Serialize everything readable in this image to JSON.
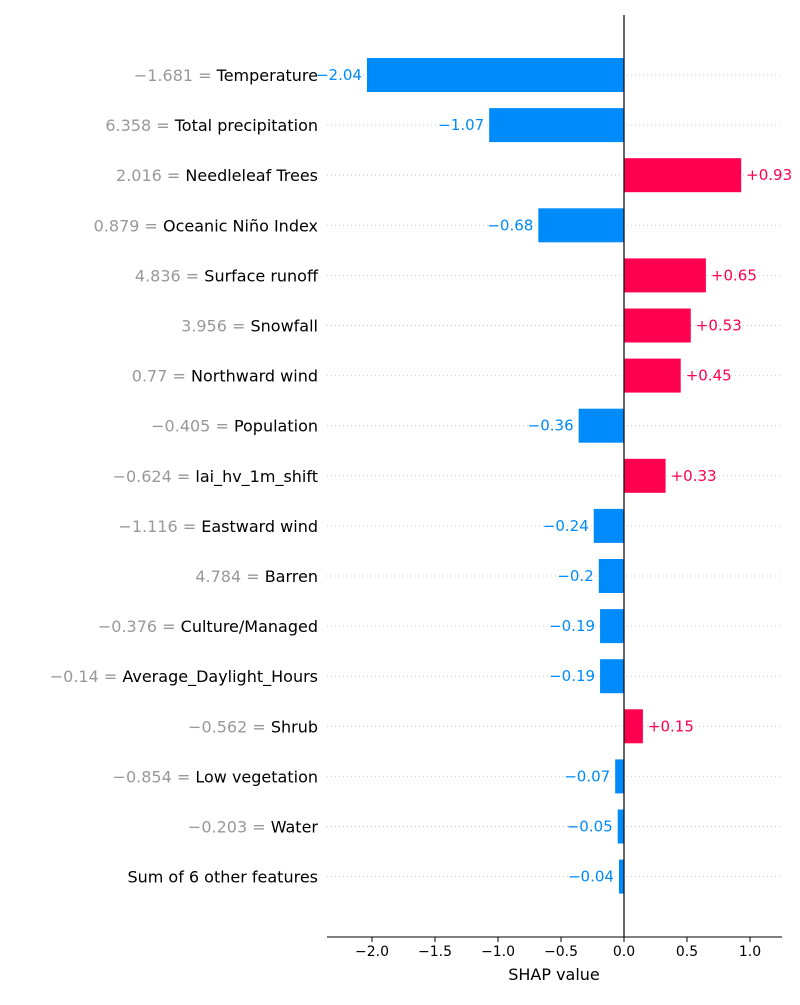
{
  "chart_data": {
    "type": "bar",
    "orientation": "horizontal",
    "title": "",
    "xlabel": "SHAP value",
    "ylabel": "",
    "xlim": [
      -2.35,
      1.25
    ],
    "x_ticks": [
      -2.0,
      -1.5,
      -1.0,
      -0.5,
      0.0,
      0.5,
      1.0
    ],
    "x_tick_labels": [
      "−2.0",
      "−1.5",
      "−1.0",
      "−0.5",
      "0.0",
      "0.5",
      "1.0"
    ],
    "grid": "horizontal dotted lines per row",
    "legend": "none",
    "colors": {
      "positive": "#ff0051",
      "negative": "#008bfb",
      "feature_value": "#999999",
      "feature_name": "#000000",
      "axis": "#000000",
      "grid": "#cccccc"
    },
    "features": [
      {
        "value_label": "−1.681 = ",
        "name": "Temperature",
        "shap": -2.04,
        "data_label": "−2.04"
      },
      {
        "value_label": "6.358 = ",
        "name": "Total precipitation",
        "shap": -1.07,
        "data_label": "−1.07"
      },
      {
        "value_label": "2.016 = ",
        "name": "Needleleaf Trees",
        "shap": 0.93,
        "data_label": "+0.93"
      },
      {
        "value_label": "0.879 = ",
        "name": "Oceanic Niño Index",
        "shap": -0.68,
        "data_label": "−0.68"
      },
      {
        "value_label": "4.836 = ",
        "name": "Surface runoff",
        "shap": 0.65,
        "data_label": "+0.65"
      },
      {
        "value_label": "3.956 = ",
        "name": "Snowfall",
        "shap": 0.53,
        "data_label": "+0.53"
      },
      {
        "value_label": "0.77 = ",
        "name": "Northward wind",
        "shap": 0.45,
        "data_label": "+0.45"
      },
      {
        "value_label": "−0.405 = ",
        "name": "Population",
        "shap": -0.36,
        "data_label": "−0.36"
      },
      {
        "value_label": "−0.624 = ",
        "name": "lai_hv_1m_shift",
        "shap": 0.33,
        "data_label": "+0.33"
      },
      {
        "value_label": "−1.116 = ",
        "name": "Eastward wind",
        "shap": -0.24,
        "data_label": "−0.24"
      },
      {
        "value_label": "4.784 = ",
        "name": "Barren",
        "shap": -0.2,
        "data_label": "−0.2"
      },
      {
        "value_label": "−0.376 = ",
        "name": "Culture/Managed",
        "shap": -0.19,
        "data_label": "−0.19"
      },
      {
        "value_label": "−0.14 = ",
        "name": "Average_Daylight_Hours",
        "shap": -0.19,
        "data_label": "−0.19"
      },
      {
        "value_label": "−0.562 = ",
        "name": "Shrub",
        "shap": 0.15,
        "data_label": "+0.15"
      },
      {
        "value_label": "−0.854 = ",
        "name": "Low vegetation",
        "shap": -0.07,
        "data_label": "−0.07"
      },
      {
        "value_label": "−0.203 = ",
        "name": "Water",
        "shap": -0.05,
        "data_label": "−0.05"
      },
      {
        "value_label": "",
        "name": "Sum of 6 other features",
        "shap": -0.04,
        "data_label": "−0.04"
      }
    ]
  }
}
